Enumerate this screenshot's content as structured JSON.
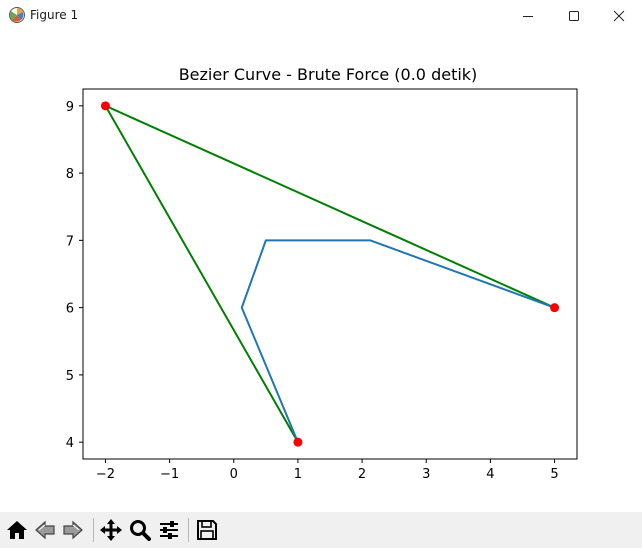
{
  "window": {
    "title": "Figure 1",
    "icons": {
      "app": "matplotlib-figure-icon",
      "minimize": "minimize-icon",
      "maximize": "maximize-icon",
      "close": "close-icon"
    }
  },
  "toolbar": {
    "buttons": [
      {
        "name": "home-icon"
      },
      {
        "name": "back-arrow-icon"
      },
      {
        "name": "forward-arrow-icon"
      },
      {
        "name": "pan-move-icon"
      },
      {
        "name": "zoom-magnifier-icon"
      },
      {
        "name": "configure-subplots-icon"
      },
      {
        "name": "save-floppy-icon"
      }
    ]
  },
  "chart_data": {
    "type": "line",
    "title": "Bezier Curve - Brute Force (0.0 detik)",
    "xlabel": "",
    "ylabel": "",
    "xlim": [
      -2.35,
      5.35
    ],
    "ylim": [
      3.75,
      9.25
    ],
    "xticks": [
      -2,
      -1,
      0,
      1,
      2,
      3,
      4,
      5
    ],
    "yticks": [
      4,
      5,
      6,
      7,
      8,
      9
    ],
    "xtick_labels": [
      "−2",
      "−1",
      "0",
      "1",
      "2",
      "3",
      "4",
      "5"
    ],
    "ytick_labels": [
      "4",
      "5",
      "6",
      "7",
      "8",
      "9"
    ],
    "grid": false,
    "legend": false,
    "colors": {
      "curve": "#1f77b4",
      "control_polygon": "#008000",
      "control_points": "#ff0000"
    },
    "series": [
      {
        "role": "curve",
        "x": [
          1,
          0.125,
          0.5,
          2.125,
          5
        ],
        "y": [
          4,
          6,
          7,
          7,
          6
        ]
      },
      {
        "role": "control_polygon",
        "x": [
          1,
          -2,
          5
        ],
        "y": [
          4,
          9,
          6
        ]
      }
    ],
    "control_points": {
      "x": [
        1,
        -2,
        5
      ],
      "y": [
        4,
        9,
        6
      ]
    }
  }
}
